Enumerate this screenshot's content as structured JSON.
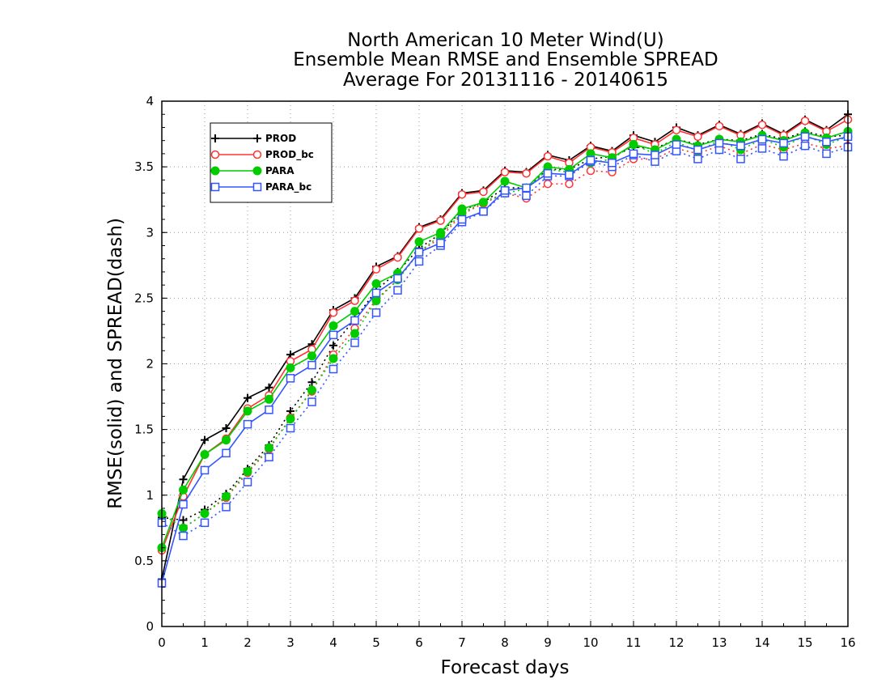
{
  "chart_data": {
    "type": "line",
    "title_lines": [
      "North American 10 Meter Wind(U)",
      "Ensemble Mean RMSE and Ensemble SPREAD",
      "Average For 20131116 - 20140615"
    ],
    "xlabel": "Forecast days",
    "ylabel": "RMSE(solid) and SPREAD(dash)",
    "xlim": [
      0,
      16
    ],
    "ylim": [
      0,
      4
    ],
    "xticks": [
      "0",
      "1",
      "2",
      "3",
      "4",
      "5",
      "6",
      "7",
      "8",
      "9",
      "10",
      "11",
      "12",
      "13",
      "14",
      "15",
      "16"
    ],
    "yticks": [
      "0",
      "0.5",
      "1",
      "1.5",
      "2",
      "2.5",
      "3",
      "3.5",
      "4"
    ],
    "grid": true,
    "legend_position": "top-left",
    "x": [
      0,
      0.5,
      1,
      1.5,
      2,
      2.5,
      3,
      3.5,
      4,
      4.5,
      5,
      5.5,
      6,
      6.5,
      7,
      7.5,
      8,
      8.5,
      9,
      9.5,
      10,
      10.5,
      11,
      11.5,
      12,
      12.5,
      13,
      13.5,
      14,
      14.5,
      15,
      15.5,
      16
    ],
    "series": [
      {
        "name": "PROD",
        "color": "#000000",
        "marker": "plus",
        "rmse": [
          0.36,
          1.12,
          1.42,
          1.51,
          1.74,
          1.82,
          2.07,
          2.15,
          2.41,
          2.5,
          2.74,
          2.82,
          3.04,
          3.1,
          3.3,
          3.32,
          3.47,
          3.46,
          3.59,
          3.55,
          3.66,
          3.62,
          3.74,
          3.69,
          3.8,
          3.74,
          3.82,
          3.75,
          3.83,
          3.75,
          3.86,
          3.78,
          3.9
        ],
        "spread": [
          0.83,
          0.81,
          0.89,
          1.01,
          1.2,
          1.38,
          1.64,
          1.86,
          2.14,
          2.34,
          2.56,
          2.7,
          2.88,
          2.99,
          3.17,
          3.23,
          3.34,
          3.34,
          3.48,
          3.48,
          3.56,
          3.58,
          3.65,
          3.64,
          3.71,
          3.67,
          3.71,
          3.7,
          3.75,
          3.71,
          3.77,
          3.73,
          3.74
        ]
      },
      {
        "name": "PROD_bc",
        "color": "#ff3333",
        "marker": "circle-open",
        "rmse": [
          0.58,
          0.99,
          1.31,
          1.43,
          1.66,
          1.76,
          2.02,
          2.11,
          2.39,
          2.48,
          2.72,
          2.81,
          3.03,
          3.09,
          3.29,
          3.31,
          3.46,
          3.45,
          3.58,
          3.53,
          3.65,
          3.61,
          3.72,
          3.67,
          3.78,
          3.73,
          3.81,
          3.74,
          3.82,
          3.74,
          3.85,
          3.77,
          3.86
        ],
        "spread": [
          0.86,
          0.75,
          0.86,
          0.98,
          1.17,
          1.35,
          1.59,
          1.79,
          2.07,
          2.27,
          2.49,
          2.64,
          2.85,
          2.96,
          3.14,
          3.22,
          3.3,
          3.26,
          3.37,
          3.37,
          3.47,
          3.46,
          3.56,
          3.56,
          3.64,
          3.6,
          3.66,
          3.6,
          3.67,
          3.63,
          3.68,
          3.64,
          3.66
        ]
      },
      {
        "name": "PARA",
        "color": "#00cc00",
        "marker": "circle-filled",
        "rmse": [
          0.6,
          1.04,
          1.31,
          1.42,
          1.64,
          1.73,
          1.97,
          2.06,
          2.29,
          2.4,
          2.61,
          2.69,
          2.93,
          3.0,
          3.18,
          3.23,
          3.39,
          3.34,
          3.5,
          3.48,
          3.6,
          3.57,
          3.67,
          3.63,
          3.71,
          3.66,
          3.71,
          3.69,
          3.74,
          3.7,
          3.76,
          3.72,
          3.77
        ],
        "spread": [
          0.86,
          0.75,
          0.86,
          0.99,
          1.18,
          1.36,
          1.58,
          1.8,
          2.04,
          2.23,
          2.48,
          2.64,
          2.85,
          2.98,
          3.15,
          3.23,
          3.3,
          3.33,
          3.48,
          3.46,
          3.53,
          3.56,
          3.67,
          3.6,
          3.69,
          3.62,
          3.7,
          3.63,
          3.71,
          3.65,
          3.74,
          3.67,
          3.73
        ]
      },
      {
        "name": "PARA_bc",
        "color": "#3355ff",
        "marker": "square-open",
        "rmse": [
          0.33,
          0.93,
          1.19,
          1.32,
          1.54,
          1.65,
          1.89,
          1.99,
          2.22,
          2.33,
          2.54,
          2.65,
          2.85,
          2.92,
          3.1,
          3.16,
          3.32,
          3.34,
          3.45,
          3.44,
          3.55,
          3.53,
          3.6,
          3.59,
          3.67,
          3.63,
          3.68,
          3.66,
          3.71,
          3.68,
          3.73,
          3.69,
          3.73
        ],
        "spread": [
          0.79,
          0.69,
          0.79,
          0.91,
          1.1,
          1.29,
          1.51,
          1.71,
          1.96,
          2.16,
          2.39,
          2.56,
          2.78,
          2.9,
          3.08,
          3.16,
          3.3,
          3.28,
          3.43,
          3.43,
          3.54,
          3.5,
          3.59,
          3.54,
          3.62,
          3.56,
          3.63,
          3.56,
          3.64,
          3.58,
          3.66,
          3.6,
          3.65
        ]
      }
    ]
  }
}
